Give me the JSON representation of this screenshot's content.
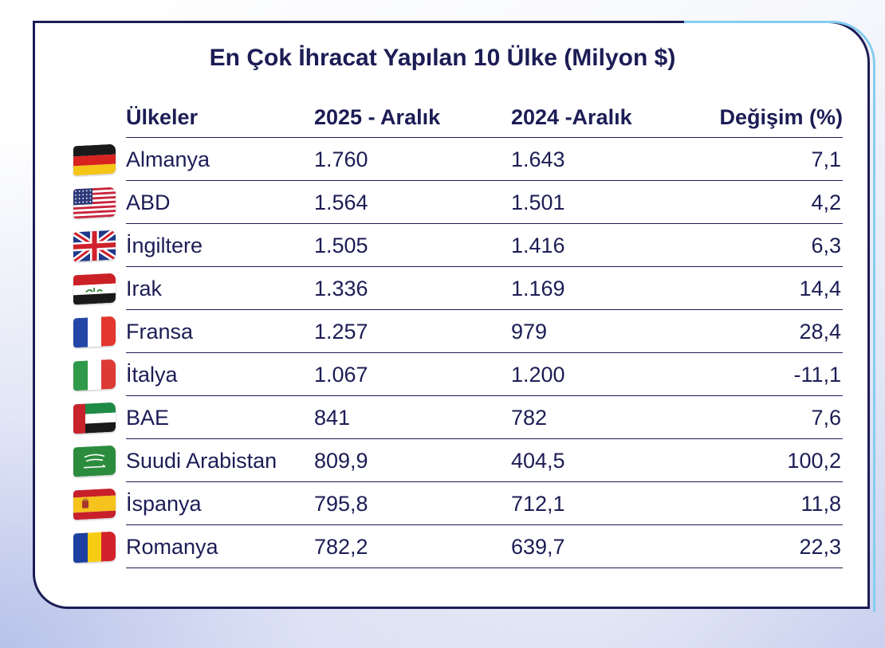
{
  "title": "En Çok İhracat Yapılan 10 Ülke (Milyon $)",
  "colors": {
    "text": "#1c1d55",
    "accent": "#86cdef"
  },
  "headers": {
    "country": "Ülkeler",
    "y2025": "2025 - Aralık",
    "y2024": "2024 -Aralık",
    "change": "Değişim (%)"
  },
  "rows": [
    {
      "country": "Almanya",
      "y2025": "1.760",
      "y2024": "1.643",
      "change": "7,1",
      "flag_icon": "germany-flag-icon"
    },
    {
      "country": "ABD",
      "y2025": "1.564",
      "y2024": "1.501",
      "change": "4,2",
      "flag_icon": "usa-flag-icon"
    },
    {
      "country": "İngiltere",
      "y2025": "1.505",
      "y2024": "1.416",
      "change": "6,3",
      "flag_icon": "uk-flag-icon"
    },
    {
      "country": "Irak",
      "y2025": "1.336",
      "y2024": "1.169",
      "change": "14,4",
      "flag_icon": "iraq-flag-icon"
    },
    {
      "country": "Fransa",
      "y2025": "1.257",
      "y2024": "979",
      "change": "28,4",
      "flag_icon": "france-flag-icon"
    },
    {
      "country": "İtalya",
      "y2025": "1.067",
      "y2024": "1.200",
      "change": "-11,1",
      "flag_icon": "italy-flag-icon"
    },
    {
      "country": "BAE",
      "y2025": "841",
      "y2024": "782",
      "change": "7,6",
      "flag_icon": "uae-flag-icon"
    },
    {
      "country": "Suudi Arabistan",
      "y2025": "809,9",
      "y2024": "404,5",
      "change": "100,2",
      "flag_icon": "saudi-arabia-flag-icon"
    },
    {
      "country": "İspanya",
      "y2025": "795,8",
      "y2024": "712,1",
      "change": "11,8",
      "flag_icon": "spain-flag-icon"
    },
    {
      "country": "Romanya",
      "y2025": "782,2",
      "y2024": "639,7",
      "change": "22,3",
      "flag_icon": "romania-flag-icon"
    }
  ],
  "chart_data": {
    "type": "table",
    "title": "En Çok İhracat Yapılan 10 Ülke (Milyon $)",
    "columns": [
      "Ülkeler",
      "2025 - Aralık",
      "2024 -Aralık",
      "Değişim (%)"
    ],
    "rows": [
      [
        "Almanya",
        1760,
        1643,
        7.1
      ],
      [
        "ABD",
        1564,
        1501,
        4.2
      ],
      [
        "İngiltere",
        1505,
        1416,
        6.3
      ],
      [
        "Irak",
        1336,
        1169,
        14.4
      ],
      [
        "Fransa",
        1257,
        979,
        28.4
      ],
      [
        "İtalya",
        1067,
        1200,
        -11.1
      ],
      [
        "BAE",
        841,
        782,
        7.6
      ],
      [
        "Suudi Arabistan",
        809.9,
        404.5,
        100.2
      ],
      [
        "İspanya",
        795.8,
        712.1,
        11.8
      ],
      [
        "Romanya",
        782.2,
        639.7,
        22.3
      ]
    ]
  }
}
